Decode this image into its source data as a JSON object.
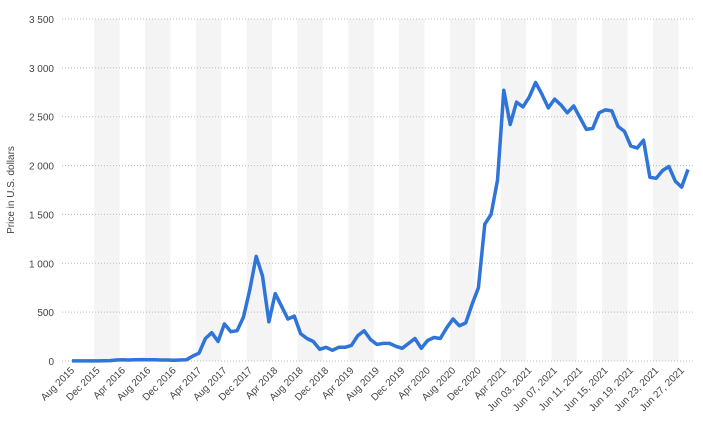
{
  "chart_data": {
    "type": "line",
    "y_label": "Price in U.S. dollars",
    "categories": [
      "Aug 2015",
      null,
      null,
      null,
      "Dec 2015",
      null,
      null,
      null,
      "Apr 2016",
      null,
      null,
      null,
      "Aug 2016",
      null,
      null,
      null,
      "Dec 2016",
      null,
      null,
      null,
      "Apr 2017",
      null,
      null,
      null,
      "Aug 2017",
      null,
      null,
      null,
      "Dec 2017",
      null,
      null,
      null,
      "Apr 2018",
      null,
      null,
      null,
      "Aug 2018",
      null,
      null,
      null,
      "Dec 2018",
      null,
      null,
      null,
      "Apr 2019",
      null,
      null,
      null,
      "Aug 2019",
      null,
      null,
      null,
      "Dec 2019",
      null,
      null,
      null,
      "Apr 2020",
      null,
      null,
      null,
      "Aug 2020",
      null,
      null,
      null,
      "Dec 2020",
      null,
      null,
      null,
      "Apr 2021",
      null,
      null,
      null,
      "Jun 03, 2021",
      null,
      null,
      null,
      "Jun 07, 2021",
      null,
      null,
      null,
      "Jun 11, 2021",
      null,
      null,
      null,
      "Jun 15, 2021",
      null,
      null,
      null,
      "Jun 19, 2021",
      null,
      null,
      null,
      "Jun 23, 2021",
      null,
      null,
      null,
      "Jun 27, 2021",
      null
    ],
    "values": [
      1,
      1,
      1,
      1,
      1,
      2,
      4,
      10,
      12,
      10,
      12,
      14,
      12,
      12,
      10,
      10,
      8,
      10,
      12,
      50,
      80,
      230,
      290,
      200,
      380,
      300,
      310,
      450,
      730,
      1070,
      870,
      400,
      690,
      560,
      430,
      460,
      280,
      230,
      200,
      120,
      140,
      110,
      140,
      140,
      160,
      260,
      310,
      220,
      170,
      180,
      180,
      150,
      130,
      180,
      230,
      130,
      210,
      240,
      230,
      340,
      430,
      360,
      390,
      580,
      750,
      1400,
      1500,
      1850,
      2770,
      2420,
      2650,
      2600,
      2700,
      2850,
      2730,
      2590,
      2680,
      2620,
      2540,
      2610,
      2490,
      2370,
      2380,
      2540,
      2570,
      2560,
      2400,
      2350,
      2200,
      2180,
      2260,
      1880,
      1870,
      1950,
      1990,
      1840,
      1780,
      1960
    ],
    "color": "#2f74d8",
    "ylim": [
      0,
      3500
    ],
    "yticks": [
      0,
      500,
      {
        "value": 1000,
        "label": "1 000"
      },
      {
        "value": 1500,
        "label": "1 500"
      },
      {
        "value": 2000,
        "label": "2 000"
      },
      {
        "value": 2500,
        "label": "2 500"
      },
      {
        "value": 3000,
        "label": "3 000"
      },
      {
        "value": 3500,
        "label": "3 500"
      }
    ],
    "grid": true
  }
}
